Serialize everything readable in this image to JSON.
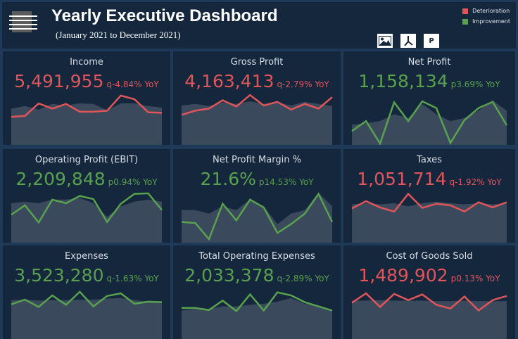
{
  "header": {
    "title": "Yearly Executive Dashboard",
    "subtitle": "(January 2021 to December 2021)",
    "legend": [
      {
        "label": "Deterioration",
        "color": "#e05559"
      },
      {
        "label": "Improvement",
        "color": "#59a14f"
      }
    ],
    "exports": [
      {
        "icon": "image-icon"
      },
      {
        "icon": "pdf-icon"
      },
      {
        "icon": "powerpoint-icon",
        "label": "P"
      }
    ]
  },
  "colors": {
    "deterioration": "#e05559",
    "improvement": "#59a14f",
    "area": "#3a4a5c"
  },
  "cards": [
    {
      "name": "Income",
      "value": "5,491,955",
      "yoy": "q-4.84% YoY",
      "status": "deterioration",
      "line": [
        51,
        53,
        77,
        67,
        76,
        61,
        61,
        63,
        92,
        85,
        60,
        59
      ],
      "area": [
        67,
        72,
        65,
        76,
        73,
        77,
        76,
        64,
        77,
        77,
        72,
        69
      ]
    },
    {
      "name": "Gross Profit",
      "value": "4,163,413",
      "yoy": "q-2.79% YoY",
      "status": "deterioration",
      "line": [
        55,
        63,
        67,
        83,
        71,
        93,
        73,
        80,
        65,
        76,
        67,
        89
      ],
      "area": [
        73,
        76,
        72,
        79,
        76,
        81,
        76,
        79,
        73,
        80,
        76,
        72
      ]
    },
    {
      "name": "Net Profit",
      "value": "1,158,134",
      "yoy": "p3.69% YoY",
      "status": "improvement",
      "line": [
        24,
        43,
        0,
        79,
        43,
        81,
        68,
        1,
        45,
        68,
        80,
        35
      ],
      "area": [
        36,
        39,
        43,
        56,
        49,
        76,
        56,
        43,
        49,
        63,
        83,
        63
      ]
    },
    {
      "name": "Operating Profit (EBIT)",
      "value": "2,209,848",
      "yoy": "p0.94% YoY",
      "status": "improvement",
      "line": [
        51,
        69,
        36,
        80,
        73,
        87,
        81,
        37,
        72,
        91,
        92,
        60
      ],
      "area": [
        73,
        76,
        73,
        80,
        80,
        83,
        73,
        47,
        67,
        76,
        80,
        76
      ]
    },
    {
      "name": "Net Profit Margin %",
      "value": "21.6%",
      "yoy": "p14.53% YoY",
      "status": "improvement",
      "line": [
        37,
        35,
        4,
        72,
        40,
        80,
        65,
        16,
        33,
        53,
        91,
        37
      ],
      "area": [
        60,
        60,
        53,
        67,
        60,
        80,
        67,
        33,
        53,
        60,
        93,
        67
      ]
    },
    {
      "name": "Taxes",
      "value": "1,051,714",
      "yoy": "q-1.92% YoY",
      "status": "deterioration",
      "line": [
        63,
        77,
        65,
        57,
        91,
        64,
        72,
        69,
        57,
        75,
        65,
        75
      ],
      "area": [
        71,
        73,
        71,
        73,
        67,
        73,
        76,
        73,
        71,
        73,
        71,
        73
      ]
    },
    {
      "name": "Expenses",
      "value": "3,523,280",
      "yoy": "q-1.63% YoY",
      "status": "improvement",
      "line": [
        64,
        73,
        59,
        81,
        63,
        88,
        60,
        80,
        85,
        65,
        69,
        68
      ],
      "area": [
        72,
        73,
        71,
        72,
        72,
        73,
        73,
        75,
        76,
        72,
        69,
        68
      ]
    },
    {
      "name": "Total Operating Expenses",
      "value": "2,033,378",
      "yoy": "q-2.89% YoY",
      "status": "improvement",
      "line": [
        57,
        57,
        53,
        71,
        51,
        83,
        52,
        87,
        81,
        68,
        60,
        52
      ],
      "area": [
        52,
        55,
        55,
        60,
        60,
        63,
        65,
        69,
        76,
        65,
        60,
        53
      ]
    },
    {
      "name": "Cost of Goods Sold",
      "value": "1,489,902",
      "yoy": "p0.13% YoY",
      "status": "deterioration",
      "line": [
        67,
        85,
        59,
        84,
        72,
        83,
        63,
        56,
        79,
        52,
        72,
        80
      ],
      "area": [
        71,
        71,
        72,
        71,
        71,
        71,
        70,
        70,
        71,
        70,
        70,
        70
      ]
    }
  ]
}
